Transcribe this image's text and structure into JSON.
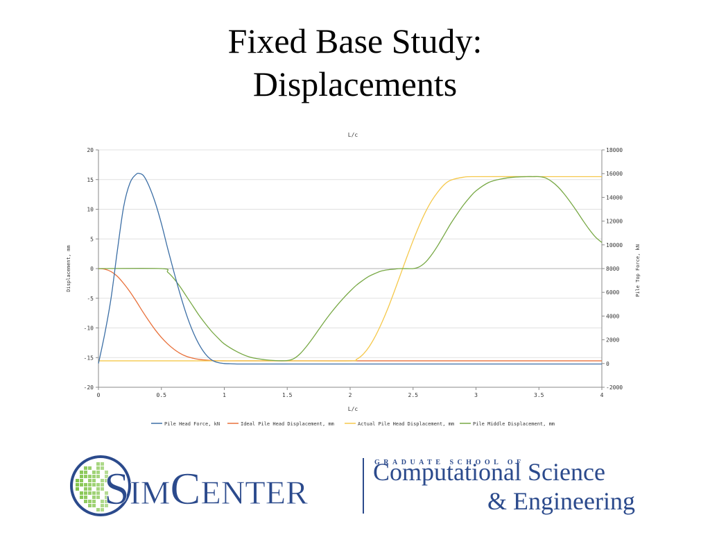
{
  "slide": {
    "title_line1": "Fixed Base Study:",
    "title_line2": "Displacements"
  },
  "chart_data": {
    "type": "line",
    "title": "L/c",
    "xlabel": "L/c",
    "ylabel": "Displacement, mm",
    "y2label": "Pile Top Force, kN",
    "xlim": [
      0,
      4
    ],
    "ylim": [
      -20,
      20
    ],
    "y2lim": [
      -2000,
      18000
    ],
    "xticks": [
      0,
      0.5,
      1,
      1.5,
      2,
      2.5,
      3,
      3.5,
      4
    ],
    "xtick_labels": [
      "0",
      "0.5",
      "1",
      "1.5",
      "2",
      "2.5",
      "3",
      "3.5",
      "4"
    ],
    "yticks": [
      -20,
      -15,
      -10,
      -5,
      0,
      5,
      10,
      15,
      20
    ],
    "ytick_labels": [
      "-20",
      "-15",
      "-10",
      "-5",
      "0",
      "5",
      "10",
      "15",
      "20"
    ],
    "y2ticks": [
      -2000,
      0,
      2000,
      4000,
      6000,
      8000,
      10000,
      12000,
      14000,
      16000,
      18000
    ],
    "y2tick_labels": [
      "-2000",
      "0",
      "2000",
      "4000",
      "6000",
      "8000",
      "10000",
      "12000",
      "14000",
      "16000",
      "18000"
    ],
    "grid": "horizontal",
    "legend_position": "bottom",
    "series": [
      {
        "name": "Pile Head Force, kN",
        "axis": "right",
        "color": "#3b6ea5",
        "x": [
          0,
          0.05,
          0.1,
          0.15,
          0.2,
          0.25,
          0.3,
          0.33,
          0.36,
          0.4,
          0.45,
          0.5,
          0.55,
          0.6,
          0.65,
          0.7,
          0.75,
          0.8,
          0.85,
          0.9,
          0.95,
          1.0,
          1.05,
          1.1,
          1.2,
          1.5,
          2.0,
          2.5,
          3.0,
          3.5,
          4.0
        ],
        "y": [
          0,
          2500,
          5500,
          9500,
          13200,
          15200,
          15950,
          16000,
          15800,
          15000,
          13600,
          11800,
          9700,
          7700,
          5800,
          4100,
          2700,
          1600,
          800,
          300,
          80,
          0,
          -20,
          -40,
          -40,
          -40,
          -40,
          -40,
          -40,
          -40,
          -40
        ]
      },
      {
        "name": "Ideal Pile Head Displacement, mm",
        "axis": "left",
        "color": "#e8703a",
        "x": [
          0,
          0.05,
          0.1,
          0.15,
          0.2,
          0.25,
          0.3,
          0.35,
          0.4,
          0.45,
          0.5,
          0.55,
          0.6,
          0.65,
          0.7,
          0.75,
          0.8,
          0.9,
          1.0,
          1.1,
          1.5,
          2.0,
          2.5,
          3.0,
          3.5,
          4.0
        ],
        "y": [
          0,
          -0.1,
          -0.5,
          -1.3,
          -2.5,
          -3.9,
          -5.5,
          -7.2,
          -8.8,
          -10.3,
          -11.6,
          -12.7,
          -13.6,
          -14.3,
          -14.8,
          -15.1,
          -15.3,
          -15.5,
          -15.55,
          -15.55,
          -15.55,
          -15.55,
          -15.55,
          -15.55,
          -15.55,
          -15.55
        ]
      },
      {
        "name": "Actual Pile Head Displacement, mm",
        "axis": "left",
        "color": "#f5c84a",
        "x": [
          0,
          0.5,
          1.0,
          1.5,
          2.0,
          2.05,
          2.1,
          2.15,
          2.2,
          2.25,
          2.3,
          2.35,
          2.4,
          2.45,
          2.5,
          2.55,
          2.6,
          2.65,
          2.7,
          2.75,
          2.8,
          2.9,
          3.0,
          3.5,
          4.0
        ],
        "y": [
          -15.55,
          -15.55,
          -15.55,
          -15.55,
          -15.55,
          -15.3,
          -14.5,
          -13.2,
          -11.4,
          -9.2,
          -6.7,
          -3.9,
          -1.0,
          1.9,
          4.7,
          7.3,
          9.6,
          11.5,
          13.0,
          14.2,
          14.9,
          15.4,
          15.5,
          15.5,
          15.5
        ]
      },
      {
        "name": "Pile Middle Displacement, mm",
        "axis": "left",
        "color": "#77a844",
        "x": [
          0,
          0.5,
          0.55,
          0.6,
          0.65,
          0.7,
          0.75,
          0.8,
          0.85,
          0.9,
          0.95,
          1.0,
          1.1,
          1.2,
          1.3,
          1.4,
          1.5,
          1.55,
          1.6,
          1.65,
          1.7,
          1.75,
          1.8,
          1.85,
          1.9,
          1.95,
          2.0,
          2.05,
          2.1,
          2.15,
          2.2,
          2.25,
          2.3,
          2.35,
          2.4,
          2.5,
          2.55,
          2.6,
          2.65,
          2.7,
          2.75,
          2.8,
          2.85,
          2.9,
          2.95,
          3.0,
          3.1,
          3.2,
          3.3,
          3.4,
          3.45,
          3.5,
          3.55,
          3.6,
          3.65,
          3.7,
          3.75,
          3.8,
          3.85,
          3.9,
          3.95,
          4.0
        ],
        "y": [
          0,
          0,
          -0.6,
          -1.7,
          -3.1,
          -4.7,
          -6.3,
          -7.9,
          -9.3,
          -10.6,
          -11.7,
          -12.7,
          -14.0,
          -14.9,
          -15.3,
          -15.5,
          -15.5,
          -15.2,
          -14.4,
          -13.2,
          -11.8,
          -10.3,
          -8.8,
          -7.4,
          -6.1,
          -4.9,
          -3.8,
          -2.8,
          -2.0,
          -1.3,
          -0.8,
          -0.4,
          -0.2,
          -0.1,
          0,
          0,
          0.3,
          1.1,
          2.4,
          4.0,
          5.8,
          7.6,
          9.2,
          10.7,
          12.0,
          13.1,
          14.5,
          15.1,
          15.4,
          15.5,
          15.5,
          15.5,
          15.3,
          14.7,
          13.8,
          12.6,
          11.2,
          9.7,
          8.1,
          6.6,
          5.3,
          4.4
        ]
      }
    ]
  },
  "logo": {
    "brand": "SimCenter",
    "brand_s": "S",
    "brand_im": "IM",
    "brand_c": "C",
    "brand_enter": "ENTER",
    "tagline_small": "GRADUATE SCHOOL OF",
    "tagline_line1": "Computational Science",
    "tagline_line2": "& Engineering",
    "color_blue": "#2b4a8c",
    "color_green": "#7cc142"
  }
}
